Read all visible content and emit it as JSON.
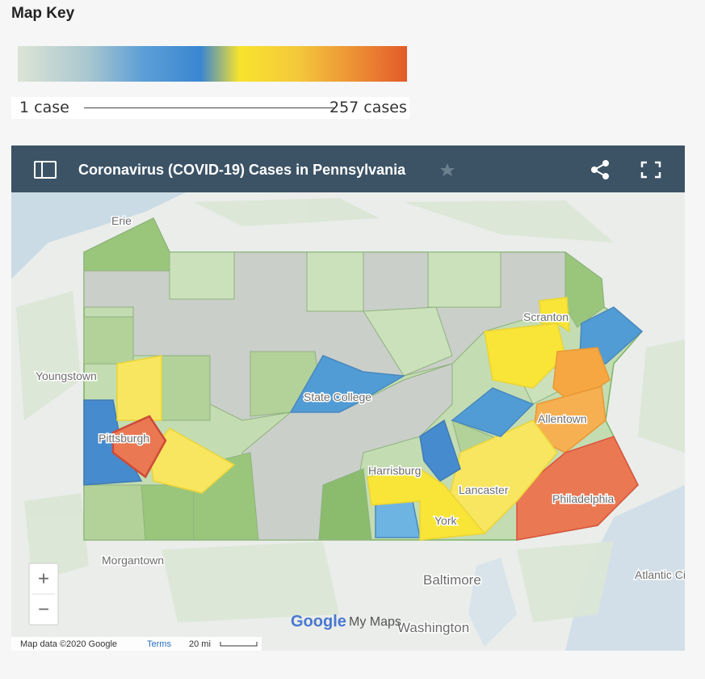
{
  "map_key": {
    "title": "Map Key",
    "min_label": "1 case",
    "max_label": "257 cases"
  },
  "map_panel": {
    "title": "Coronavirus (COVID-19) Cases in Pennsylvania",
    "places": [
      "Erie",
      "Youngstown",
      "Pittsburgh",
      "State College",
      "Scranton",
      "Allentown",
      "Harrisburg",
      "Lancaster",
      "York",
      "Philadelphia",
      "Morgantown",
      "Baltimore",
      "Washington",
      "Atlantic City"
    ],
    "zoom_in": "+",
    "zoom_out": "−",
    "logo": {
      "google": "Google",
      "product": "My Maps"
    },
    "attribution": "Map data ©2020 Google",
    "terms": "Terms",
    "scale": "20 mi"
  }
}
